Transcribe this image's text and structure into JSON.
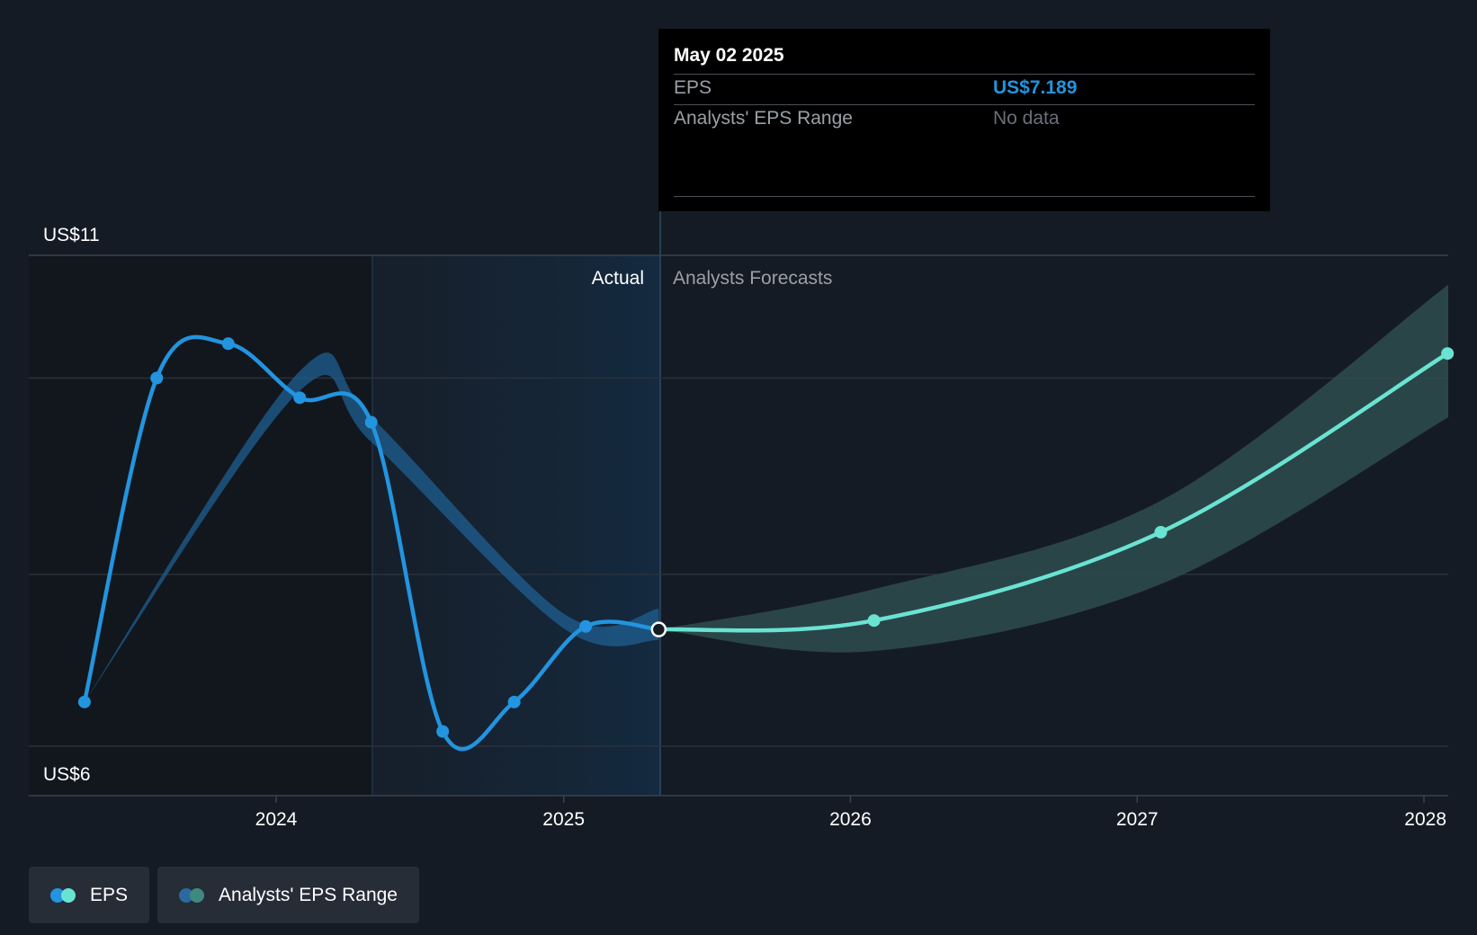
{
  "tooltip": {
    "date": "May 02 2025",
    "rows": [
      {
        "label": "EPS",
        "value": "US$7.189",
        "value_color": "#2394df"
      },
      {
        "label": "Analysts' EPS Range",
        "value": "No data",
        "value_color": "#6b7078"
      }
    ]
  },
  "legend": {
    "items": [
      {
        "label": "EPS",
        "colors": [
          "#2394df",
          "#6ae3d2"
        ]
      },
      {
        "label": "Analysts' EPS Range",
        "colors": [
          "#2a6a9e",
          "#3f8a80"
        ]
      }
    ]
  },
  "chart_data": {
    "type": "line",
    "ylim": [
      6,
      11
    ],
    "y_axis_labels": [
      "US$11",
      "US$6"
    ],
    "x_tick_labels": [
      "2024",
      "2025",
      "2026",
      "2027",
      "2028"
    ],
    "section_labels": {
      "actual": "Actual",
      "forecast": "Analysts Forecasts"
    },
    "grid": true,
    "legend_position": "bottom-left",
    "colors": {
      "actual_line": "#2394df",
      "forecast_line": "#6ae3d2",
      "actual_band": "#1f5f91",
      "forecast_band": "#2c4a4d"
    },
    "series": [
      {
        "name": "EPS",
        "segment": "actual",
        "points": [
          {
            "x": "2023-05-02",
            "y": 6.45
          },
          {
            "x": "2023-08-02",
            "y": 9.75
          },
          {
            "x": "2023-11-01",
            "y": 10.1
          },
          {
            "x": "2024-01-31",
            "y": 9.55
          },
          {
            "x": "2024-05-01",
            "y": 9.3
          },
          {
            "x": "2024-07-31",
            "y": 6.15
          },
          {
            "x": "2024-10-30",
            "y": 6.45
          },
          {
            "x": "2025-01-29",
            "y": 7.22
          },
          {
            "x": "2025-05-02",
            "y": 7.189
          }
        ]
      },
      {
        "name": "EPS",
        "segment": "forecast",
        "points": [
          {
            "x": "2025-05-02",
            "y": 7.189
          },
          {
            "x": "2026-01-31",
            "y": 7.28
          },
          {
            "x": "2027-01-31",
            "y": 8.18
          },
          {
            "x": "2028-01-31",
            "y": 10.0
          }
        ]
      },
      {
        "name": "Analysts' EPS Range",
        "segment": "actual",
        "low": [
          {
            "x": "2023-05-02",
            "y": 6.45
          },
          {
            "x": "2024-01-31",
            "y": 9.62
          },
          {
            "x": "2024-05-01",
            "y": 9.1
          },
          {
            "x": "2025-01-01",
            "y": 7.2
          },
          {
            "x": "2025-05-02",
            "y": 7.08
          }
        ],
        "high": [
          {
            "x": "2023-05-02",
            "y": 6.45
          },
          {
            "x": "2024-01-31",
            "y": 9.82
          },
          {
            "x": "2024-05-01",
            "y": 9.35
          },
          {
            "x": "2025-01-01",
            "y": 7.35
          },
          {
            "x": "2025-05-02",
            "y": 7.4
          }
        ]
      },
      {
        "name": "Analysts' EPS Range",
        "segment": "forecast",
        "low": [
          {
            "x": "2025-05-02",
            "y": 7.189
          },
          {
            "x": "2026-01-31",
            "y": 6.97
          },
          {
            "x": "2027-01-31",
            "y": 7.65
          },
          {
            "x": "2028-05-02",
            "y": 9.35
          }
        ],
        "high": [
          {
            "x": "2025-05-02",
            "y": 7.189
          },
          {
            "x": "2026-01-31",
            "y": 7.6
          },
          {
            "x": "2027-01-31",
            "y": 8.5
          },
          {
            "x": "2028-05-02",
            "y": 10.7
          }
        ]
      }
    ]
  }
}
